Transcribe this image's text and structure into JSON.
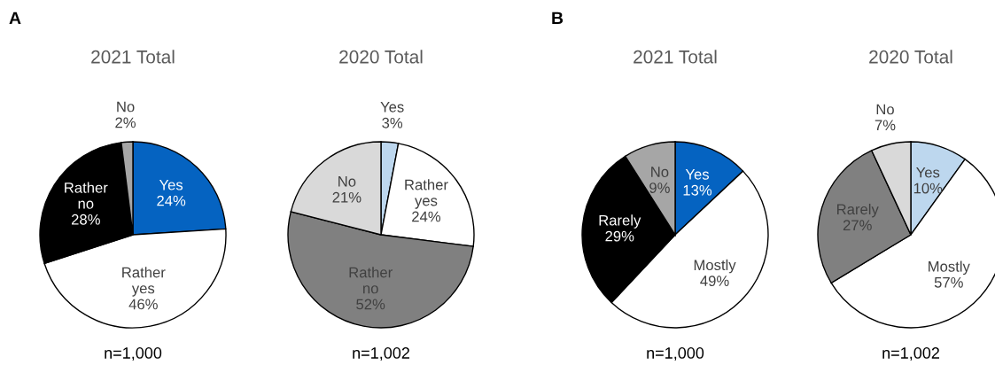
{
  "chart_data": [
    {
      "type": "pie",
      "title": "2021 Total",
      "categories": [
        "Yes",
        "Rather yes",
        "Rather no",
        "No"
      ],
      "values": [
        24,
        46,
        28,
        2
      ],
      "value_labels": [
        "24%",
        "46%",
        "28%",
        "2%"
      ],
      "colors": [
        "#0563c1",
        "#ffffff",
        "#000000",
        "#a6a6a6"
      ],
      "annotations": [
        "A",
        "n=1,000"
      ]
    },
    {
      "type": "pie",
      "title": "2020 Total",
      "categories": [
        "Yes",
        "Rather yes",
        "Rather no",
        "No"
      ],
      "values": [
        3,
        24,
        52,
        21
      ],
      "value_labels": [
        "3%",
        "24%",
        "52%",
        "21%"
      ],
      "colors": [
        "#bdd7ee",
        "#ffffff",
        "#808080",
        "#d9d9d9"
      ],
      "annotations": [
        "n=1,002"
      ]
    },
    {
      "type": "pie",
      "title": "2021 Total",
      "categories": [
        "Yes",
        "Mostly",
        "Rarely",
        "No"
      ],
      "values": [
        13,
        49,
        29,
        9
      ],
      "value_labels": [
        "13%",
        "49%",
        "29%",
        "9%"
      ],
      "colors": [
        "#0563c1",
        "#ffffff",
        "#000000",
        "#a6a6a6"
      ],
      "annotations": [
        "B",
        "n=1,000"
      ]
    },
    {
      "type": "pie",
      "title": "2020 Total",
      "categories": [
        "Yes",
        "Mostly",
        "Rarely",
        "No"
      ],
      "values": [
        10,
        57,
        27,
        7
      ],
      "value_labels": [
        "10%",
        "57%",
        "27%",
        "7%"
      ],
      "colors": [
        "#bdd7ee",
        "#ffffff",
        "#808080",
        "#d9d9d9"
      ],
      "annotations": [
        "n=1,002"
      ]
    }
  ]
}
